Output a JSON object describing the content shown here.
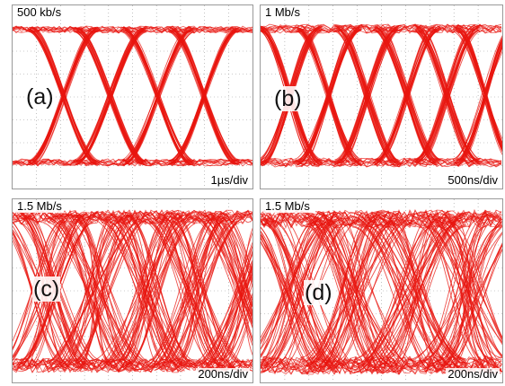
{
  "colors": {
    "trace": "#e8160f",
    "grid": "#9a9a9a",
    "background": "#ffffff"
  },
  "chart_data": [
    {
      "type": "eye-diagram",
      "label": "(a)",
      "bit_rate": "500 kb/s",
      "timebase": "1µs/div",
      "grid": true,
      "levels": [
        "high",
        "low"
      ],
      "crossings_visible": 5,
      "jitter": "low"
    },
    {
      "type": "eye-diagram",
      "label": "(b)",
      "bit_rate": "1 Mb/s",
      "timebase": "500ns/div",
      "grid": true,
      "levels": [
        "high",
        "low"
      ],
      "crossings_visible": 6,
      "jitter": "moderate"
    },
    {
      "type": "eye-diagram",
      "label": "(c)",
      "bit_rate": "1.5 Mb/s",
      "timebase": "200ns/div",
      "grid": true,
      "levels": [
        "high",
        "low"
      ],
      "crossings_visible": 3,
      "jitter": "high"
    },
    {
      "type": "eye-diagram",
      "label": "(d)",
      "bit_rate": "1.5 Mb/s",
      "timebase": "200ns/div",
      "grid": true,
      "levels": [
        "high",
        "low"
      ],
      "crossings_visible": 2,
      "jitter": "very high"
    }
  ]
}
